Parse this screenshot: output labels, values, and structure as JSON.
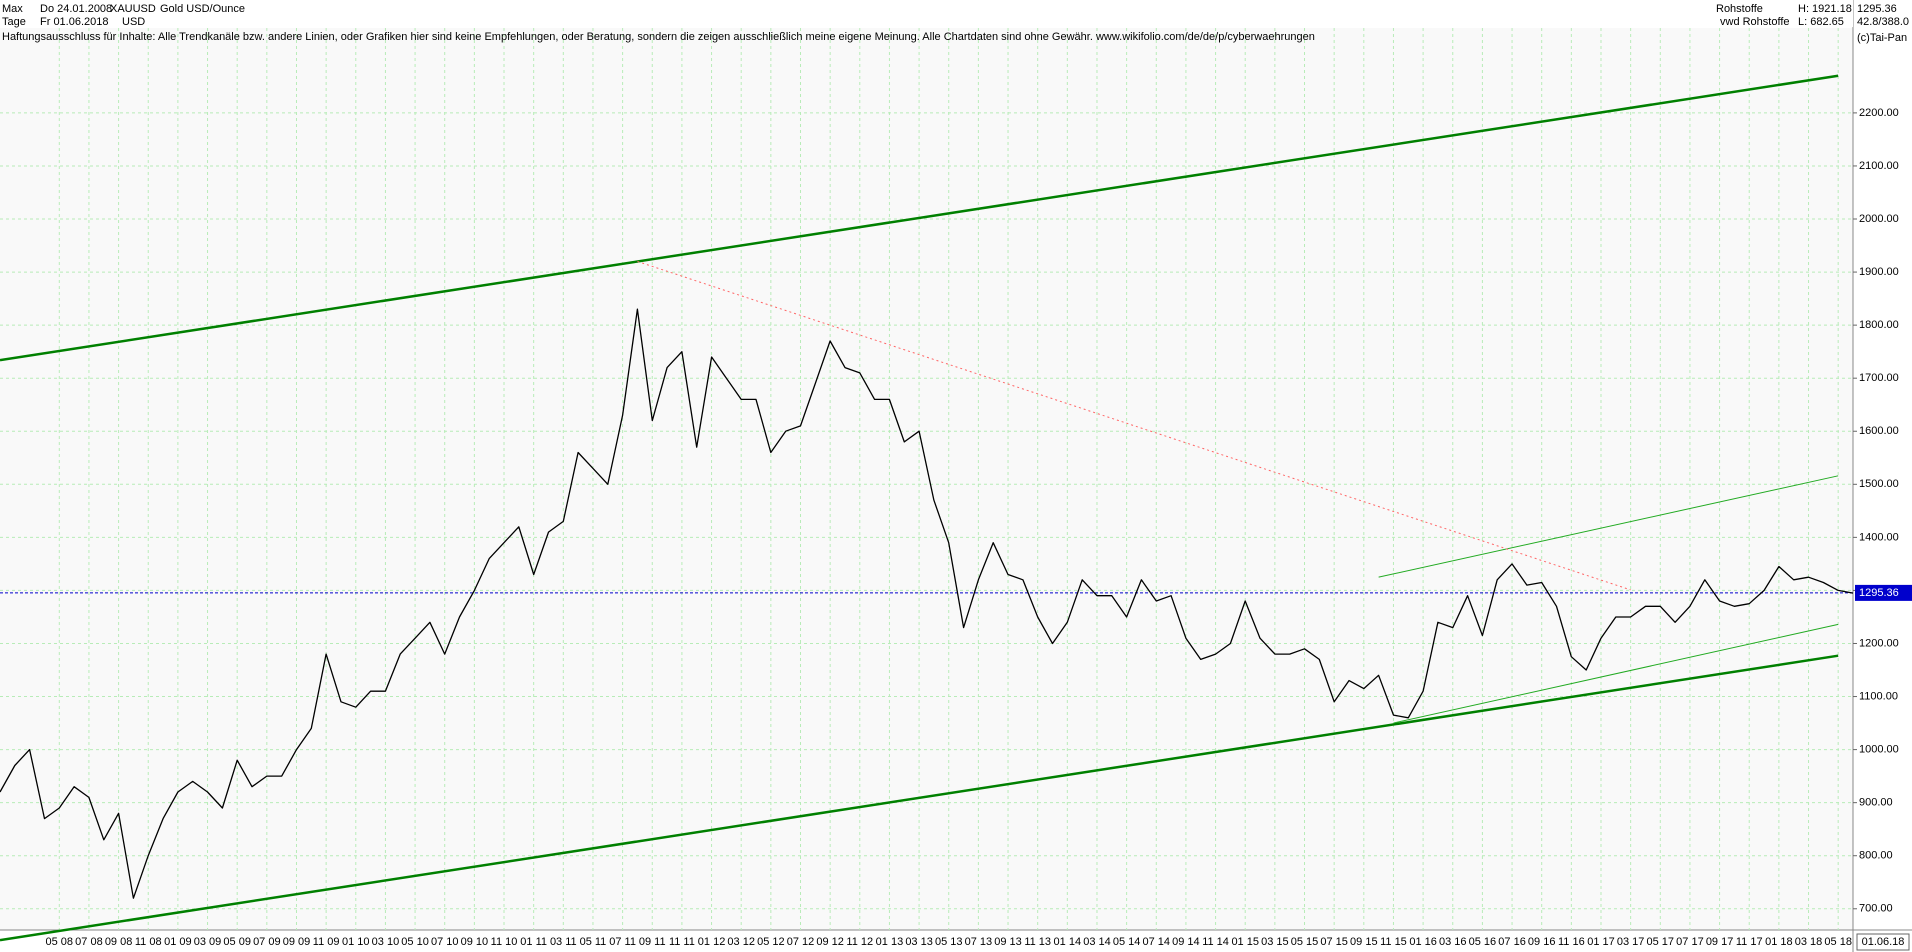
{
  "header": {
    "range": "Max",
    "from": "Do 24.01.2008",
    "symbol": "XAUUSD",
    "instrument": "Gold USD/Ounce",
    "period": "Tage",
    "to": "Fr 01.06.2018",
    "currency": "USD",
    "disclaimer": "Haftungsausschluss für Inhalte: Alle Trendkanäle bzw. andere Linien, oder Grafiken hier sind keine Empfehlungen, oder Beratung, sondern die zeigen ausschließlich meine eigene Meinung. Alle Chartdaten sind ohne Gewähr.  www.wikifolio.com/de/de/p/cyberwaehrungen",
    "group": "Rohstoffe",
    "high": "H: 1921.18",
    "source": "vwd Rohstoffe",
    "low": "L: 682.65",
    "ratio": "42.8/388.0",
    "copyright": "(c)Tai-Pan"
  },
  "chart_data": {
    "type": "line",
    "xlim": [
      "2008-01",
      "2018-06"
    ],
    "ylim": [
      660,
      2360
    ],
    "yticks": [
      {
        "value": 700,
        "label": "700.00"
      },
      {
        "value": 800,
        "label": "800.00"
      },
      {
        "value": 900,
        "label": "900.00"
      },
      {
        "value": 1000,
        "label": "1000.00"
      },
      {
        "value": 1100,
        "label": "1100.00"
      },
      {
        "value": 1200,
        "label": "1200.00"
      },
      {
        "value": 1300,
        "label": "1300.00"
      },
      {
        "value": 1400,
        "label": "1400.00"
      },
      {
        "value": 1500,
        "label": "1500.00"
      },
      {
        "value": 1600,
        "label": "1600.00"
      },
      {
        "value": 1700,
        "label": "1700.00"
      },
      {
        "value": 1800,
        "label": "1800.00"
      },
      {
        "value": 1900,
        "label": "1900.00"
      },
      {
        "value": 2000,
        "label": "2000.00"
      },
      {
        "value": 2100,
        "label": "2100.00"
      },
      {
        "value": 2200,
        "label": "2200.00"
      }
    ],
    "xticks": [
      {
        "value": "2008-05",
        "label": "05 08"
      },
      {
        "value": "2008-07",
        "label": "07 08"
      },
      {
        "value": "2008-09",
        "label": "09 08"
      },
      {
        "value": "2008-11",
        "label": "11 08"
      },
      {
        "value": "2009-01",
        "label": "01 09"
      },
      {
        "value": "2009-03",
        "label": "03 09"
      },
      {
        "value": "2009-05",
        "label": "05 09"
      },
      {
        "value": "2009-07",
        "label": "07 09"
      },
      {
        "value": "2009-09",
        "label": "09 09"
      },
      {
        "value": "2009-11",
        "label": "11 09"
      },
      {
        "value": "2010-01",
        "label": "01 10"
      },
      {
        "value": "2010-03",
        "label": "03 10"
      },
      {
        "value": "2010-05",
        "label": "05 10"
      },
      {
        "value": "2010-07",
        "label": "07 10"
      },
      {
        "value": "2010-09",
        "label": "09 10"
      },
      {
        "value": "2010-11",
        "label": "11 10"
      },
      {
        "value": "2011-01",
        "label": "01 11"
      },
      {
        "value": "2011-03",
        "label": "03 11"
      },
      {
        "value": "2011-05",
        "label": "05 11"
      },
      {
        "value": "2011-07",
        "label": "07 11"
      },
      {
        "value": "2011-09",
        "label": "09 11"
      },
      {
        "value": "2011-11",
        "label": "11 11"
      },
      {
        "value": "2012-01",
        "label": "01 12"
      },
      {
        "value": "2012-03",
        "label": "03 12"
      },
      {
        "value": "2012-05",
        "label": "05 12"
      },
      {
        "value": "2012-07",
        "label": "07 12"
      },
      {
        "value": "2012-09",
        "label": "09 12"
      },
      {
        "value": "2012-11",
        "label": "11 12"
      },
      {
        "value": "2013-01",
        "label": "01 13"
      },
      {
        "value": "2013-03",
        "label": "03 13"
      },
      {
        "value": "2013-05",
        "label": "05 13"
      },
      {
        "value": "2013-07",
        "label": "07 13"
      },
      {
        "value": "2013-09",
        "label": "09 13"
      },
      {
        "value": "2013-11",
        "label": "11 13"
      },
      {
        "value": "2014-01",
        "label": "01 14"
      },
      {
        "value": "2014-03",
        "label": "03 14"
      },
      {
        "value": "2014-05",
        "label": "05 14"
      },
      {
        "value": "2014-07",
        "label": "07 14"
      },
      {
        "value": "2014-09",
        "label": "09 14"
      },
      {
        "value": "2014-11",
        "label": "11 14"
      },
      {
        "value": "2015-01",
        "label": "01 15"
      },
      {
        "value": "2015-03",
        "label": "03 15"
      },
      {
        "value": "2015-05",
        "label": "05 15"
      },
      {
        "value": "2015-07",
        "label": "07 15"
      },
      {
        "value": "2015-09",
        "label": "09 15"
      },
      {
        "value": "2015-11",
        "label": "11 15"
      },
      {
        "value": "2016-01",
        "label": "01 16"
      },
      {
        "value": "2016-03",
        "label": "03 16"
      },
      {
        "value": "2016-05",
        "label": "05 16"
      },
      {
        "value": "2016-07",
        "label": "07 16"
      },
      {
        "value": "2016-09",
        "label": "09 16"
      },
      {
        "value": "2016-11",
        "label": "11 16"
      },
      {
        "value": "2017-01",
        "label": "01 17"
      },
      {
        "value": "2017-03",
        "label": "03 17"
      },
      {
        "value": "2017-05",
        "label": "05 17"
      },
      {
        "value": "2017-07",
        "label": "07 17"
      },
      {
        "value": "2017-09",
        "label": "09 17"
      },
      {
        "value": "2017-11",
        "label": "11 17"
      },
      {
        "value": "2018-01",
        "label": "01 18"
      },
      {
        "value": "2018-03",
        "label": "03 18"
      },
      {
        "value": "2018-05",
        "label": "05 18"
      },
      {
        "value": "2018-06",
        "label": "01.06.18"
      }
    ],
    "grid": true,
    "series": [
      {
        "color": "#000000",
        "down_color": "#cc0000",
        "x": [
          "2008-01",
          "2008-02",
          "2008-03",
          "2008-04",
          "2008-05",
          "2008-06",
          "2008-07",
          "2008-08",
          "2008-09",
          "2008-10",
          "2008-11",
          "2008-12",
          "2009-01",
          "2009-02",
          "2009-03",
          "2009-04",
          "2009-05",
          "2009-06",
          "2009-07",
          "2009-08",
          "2009-09",
          "2009-10",
          "2009-11",
          "2009-12",
          "2010-01",
          "2010-02",
          "2010-03",
          "2010-04",
          "2010-05",
          "2010-06",
          "2010-07",
          "2010-08",
          "2010-09",
          "2010-10",
          "2010-11",
          "2010-12",
          "2011-01",
          "2011-02",
          "2011-03",
          "2011-04",
          "2011-05",
          "2011-06",
          "2011-07",
          "2011-08",
          "2011-09",
          "2011-10",
          "2011-11",
          "2011-12",
          "2012-01",
          "2012-02",
          "2012-03",
          "2012-04",
          "2012-05",
          "2012-06",
          "2012-07",
          "2012-08",
          "2012-09",
          "2012-10",
          "2012-11",
          "2012-12",
          "2013-01",
          "2013-02",
          "2013-03",
          "2013-04",
          "2013-05",
          "2013-06",
          "2013-07",
          "2013-08",
          "2013-09",
          "2013-10",
          "2013-11",
          "2013-12",
          "2014-01",
          "2014-02",
          "2014-03",
          "2014-04",
          "2014-05",
          "2014-06",
          "2014-07",
          "2014-08",
          "2014-09",
          "2014-10",
          "2014-11",
          "2014-12",
          "2015-01",
          "2015-02",
          "2015-03",
          "2015-04",
          "2015-05",
          "2015-06",
          "2015-07",
          "2015-08",
          "2015-09",
          "2015-10",
          "2015-11",
          "2015-12",
          "2016-01",
          "2016-02",
          "2016-03",
          "2016-04",
          "2016-05",
          "2016-06",
          "2016-07",
          "2016-08",
          "2016-09",
          "2016-10",
          "2016-11",
          "2016-12",
          "2017-01",
          "2017-02",
          "2017-03",
          "2017-04",
          "2017-05",
          "2017-06",
          "2017-07",
          "2017-08",
          "2017-09",
          "2017-10",
          "2017-11",
          "2017-12",
          "2018-01",
          "2018-02",
          "2018-03",
          "2018-04",
          "2018-05",
          "2018-06"
        ],
        "values": [
          920,
          970,
          1000,
          870,
          890,
          930,
          910,
          830,
          880,
          720,
          800,
          870,
          920,
          940,
          920,
          890,
          980,
          930,
          950,
          950,
          1000,
          1040,
          1180,
          1090,
          1080,
          1110,
          1110,
          1180,
          1210,
          1240,
          1180,
          1250,
          1300,
          1360,
          1390,
          1420,
          1330,
          1410,
          1430,
          1560,
          1530,
          1500,
          1630,
          1830,
          1620,
          1720,
          1750,
          1570,
          1740,
          1700,
          1660,
          1660,
          1560,
          1600,
          1610,
          1690,
          1770,
          1720,
          1710,
          1660,
          1660,
          1580,
          1600,
          1470,
          1390,
          1230,
          1320,
          1390,
          1330,
          1320,
          1250,
          1200,
          1240,
          1320,
          1290,
          1290,
          1250,
          1320,
          1280,
          1290,
          1210,
          1170,
          1180,
          1200,
          1280,
          1210,
          1180,
          1180,
          1190,
          1170,
          1090,
          1130,
          1115,
          1140,
          1065,
          1060,
          1110,
          1240,
          1230,
          1290,
          1215,
          1320,
          1350,
          1310,
          1315,
          1270,
          1175,
          1150,
          1210,
          1250,
          1250,
          1270,
          1270,
          1240,
          1270,
          1320,
          1280,
          1270,
          1275,
          1300,
          1345,
          1320,
          1325,
          1315,
          1300,
          1295
        ]
      }
    ],
    "ref_line": {
      "value": 1295.36,
      "color": "#0000cc"
    },
    "trend_lines": [
      {
        "x": [
          "2008-01",
          "2018-05"
        ],
        "y": [
          1734,
          2270
        ],
        "color": "#008000",
        "width": 2.5
      },
      {
        "x": [
          "2008-01",
          "2018-05"
        ],
        "y": [
          641,
          1177
        ],
        "color": "#008000",
        "width": 2.5
      },
      {
        "x": [
          "2015-10",
          "2018-05"
        ],
        "y": [
          1325,
          1516
        ],
        "color": "#22aa22",
        "width": 1
      },
      {
        "x": [
          "2015-11",
          "2018-05"
        ],
        "y": [
          1050,
          1236
        ],
        "color": "#22aa22",
        "width": 1
      },
      {
        "x": [
          "2011-08",
          "2017-03"
        ],
        "y": [
          1920,
          1301
        ],
        "color": "#ff6666",
        "width": 1,
        "dashed": true
      }
    ]
  }
}
